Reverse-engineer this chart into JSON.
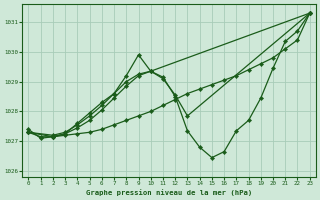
{
  "title": "Graphe pression niveau de la mer (hPa)",
  "background_color": "#cfe8d8",
  "grid_color": "#a8ccb8",
  "line_color": "#1a5c1a",
  "marker_color": "#1a5c1a",
  "xlim": [
    -0.5,
    23.5
  ],
  "ylim": [
    1025.8,
    1031.6
  ],
  "yticks": [
    1026,
    1027,
    1028,
    1029,
    1030,
    1031
  ],
  "xticks": [
    0,
    1,
    2,
    3,
    4,
    5,
    6,
    7,
    8,
    9,
    10,
    11,
    12,
    13,
    14,
    15,
    16,
    17,
    18,
    19,
    20,
    21,
    22,
    23
  ],
  "series": [
    {
      "x": [
        0,
        1,
        2,
        3,
        4,
        5,
        6,
        7,
        8,
        9,
        10,
        11,
        12,
        13,
        14,
        15,
        16,
        17,
        18,
        19,
        20,
        21,
        22,
        23
      ],
      "y": [
        1027.3,
        1027.15,
        1027.15,
        1027.2,
        1027.25,
        1027.3,
        1027.4,
        1027.55,
        1027.7,
        1027.85,
        1028.0,
        1028.2,
        1028.4,
        1028.6,
        1028.75,
        1028.9,
        1029.05,
        1029.2,
        1029.4,
        1029.6,
        1029.8,
        1030.1,
        1030.4,
        1031.3
      ]
    },
    {
      "x": [
        0,
        1,
        2,
        3,
        4,
        5,
        6,
        7,
        8,
        9,
        10,
        11,
        12,
        13,
        14,
        15,
        16,
        17,
        18,
        19,
        20,
        21,
        22,
        23
      ],
      "y": [
        1027.4,
        1027.1,
        1027.15,
        1027.25,
        1027.6,
        1027.95,
        1028.3,
        1028.6,
        1029.2,
        1029.9,
        1029.35,
        1029.15,
        1028.5,
        1027.35,
        1026.8,
        1026.45,
        1026.65,
        1027.35,
        1027.7,
        1028.45,
        1029.45,
        1030.35,
        1030.7,
        1031.3
      ]
    },
    {
      "x": [
        0,
        2,
        3,
        4,
        5,
        6,
        7,
        8,
        9,
        10,
        11,
        12,
        13,
        23
      ],
      "y": [
        1027.3,
        1027.15,
        1027.25,
        1027.45,
        1027.7,
        1028.05,
        1028.45,
        1028.85,
        1029.2,
        1029.35,
        1029.1,
        1028.55,
        1027.85,
        1031.3
      ]
    },
    {
      "x": [
        0,
        2,
        3,
        4,
        5,
        6,
        7,
        8,
        9,
        10,
        23
      ],
      "y": [
        1027.3,
        1027.2,
        1027.3,
        1027.55,
        1027.85,
        1028.2,
        1028.6,
        1029.0,
        1029.25,
        1029.35,
        1031.3
      ]
    }
  ]
}
